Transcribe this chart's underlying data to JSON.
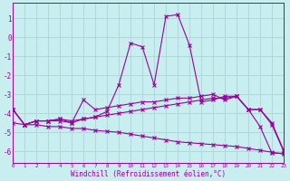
{
  "background_color": "#c8eef0",
  "grid_color": "#b0d8dc",
  "line_color": "#990099",
  "xlabel": "Windchill (Refroidissement éolien,°C)",
  "xlim": [
    0,
    23
  ],
  "ylim": [
    -6.6,
    1.8
  ],
  "yticks": [
    1,
    0,
    -1,
    -2,
    -3,
    -4,
    -5,
    -6
  ],
  "xticks": [
    0,
    1,
    2,
    3,
    4,
    5,
    6,
    7,
    8,
    9,
    10,
    11,
    12,
    13,
    14,
    15,
    16,
    17,
    18,
    19,
    20,
    21,
    22,
    23
  ],
  "line_peak_x": [
    0,
    1,
    2,
    3,
    4,
    5,
    6,
    7,
    8,
    9,
    10,
    11,
    12,
    13,
    14,
    15,
    16,
    17,
    18,
    19,
    20,
    21,
    22,
    23
  ],
  "line_peak_y": [
    -3.8,
    -4.6,
    -4.4,
    -4.4,
    -4.4,
    -4.5,
    -4.3,
    -4.2,
    -3.9,
    -2.5,
    -0.3,
    -0.5,
    -2.5,
    1.1,
    1.2,
    -0.4,
    -3.4,
    -3.3,
    -3.1,
    -3.1,
    -3.8,
    -4.7,
    -6.1,
    -6.1
  ],
  "line_mid_x": [
    0,
    1,
    2,
    3,
    4,
    5,
    6,
    7,
    8,
    9,
    10,
    11,
    12,
    13,
    14,
    15,
    16,
    17,
    18,
    19,
    20,
    21,
    22,
    23
  ],
  "line_mid_y": [
    -3.8,
    -4.6,
    -4.4,
    -4.4,
    -4.3,
    -4.5,
    -3.3,
    -3.8,
    -3.7,
    -3.6,
    -3.5,
    -3.4,
    -3.4,
    -3.3,
    -3.2,
    -3.2,
    -3.1,
    -3.0,
    -3.3,
    -3.1,
    -3.8,
    -3.8,
    -4.6,
    -6.0
  ],
  "line_flat_x": [
    0,
    1,
    2,
    3,
    4,
    5,
    6,
    7,
    8,
    9,
    10,
    11,
    12,
    13,
    14,
    15,
    16,
    17,
    18,
    19,
    20,
    21,
    22,
    23
  ],
  "line_flat_y": [
    -3.8,
    -4.6,
    -4.4,
    -4.4,
    -4.3,
    -4.4,
    -4.3,
    -4.2,
    -4.1,
    -4.0,
    -3.9,
    -3.8,
    -3.7,
    -3.6,
    -3.5,
    -3.4,
    -3.3,
    -3.2,
    -3.2,
    -3.1,
    -3.8,
    -3.8,
    -4.5,
    -5.95
  ],
  "line_bot_x": [
    0,
    1,
    2,
    3,
    4,
    5,
    6,
    7,
    8,
    9,
    10,
    11,
    12,
    13,
    14,
    15,
    16,
    17,
    18,
    19,
    20,
    21,
    22,
    23
  ],
  "line_bot_y": [
    -4.5,
    -4.6,
    -4.6,
    -4.7,
    -4.7,
    -4.8,
    -4.8,
    -4.9,
    -4.95,
    -5.0,
    -5.1,
    -5.2,
    -5.3,
    -5.4,
    -5.5,
    -5.55,
    -5.6,
    -5.65,
    -5.7,
    -5.75,
    -5.85,
    -5.95,
    -6.05,
    -6.15
  ]
}
